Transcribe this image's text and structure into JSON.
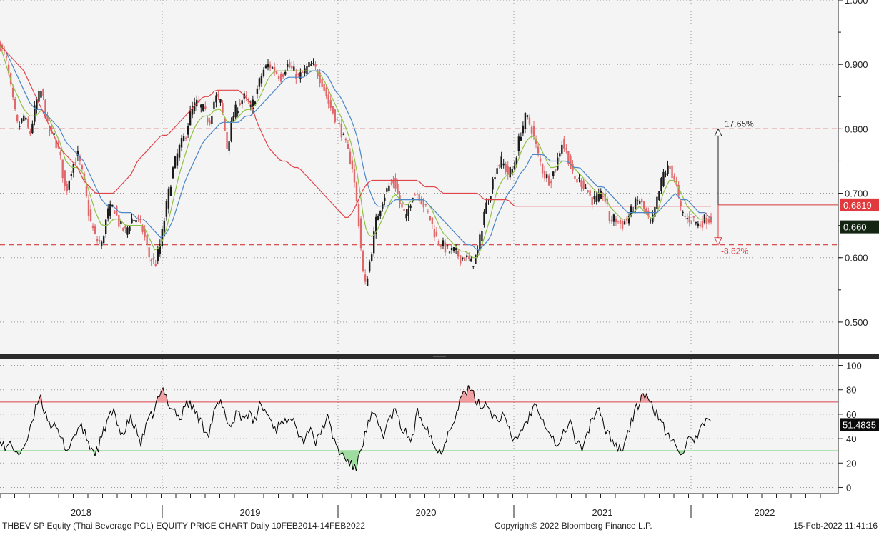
{
  "chart_data": [
    {
      "type": "candlestick",
      "title": "",
      "ylim": [
        0.45,
        1.0
      ],
      "y_ticks": [
        "1.000",
        "0.900",
        "0.800",
        "0.700",
        "0.600",
        "0.500"
      ],
      "series": [
        {
          "name": "",
          "values": [
            0.93,
            0.91,
            0.85,
            0.8,
            0.82,
            0.79,
            0.84,
            0.86,
            0.8,
            0.79,
            0.76,
            0.7,
            0.74,
            0.76,
            0.72,
            0.66,
            0.63,
            0.62,
            0.67,
            0.68,
            0.65,
            0.64,
            0.66,
            0.66,
            0.64,
            0.6,
            0.59,
            0.63,
            0.69,
            0.74,
            0.77,
            0.79,
            0.83,
            0.84,
            0.83,
            0.81,
            0.85,
            0.84,
            0.77,
            0.82,
            0.84,
            0.85,
            0.83,
            0.86,
            0.89,
            0.9,
            0.89,
            0.88,
            0.9,
            0.89,
            0.88,
            0.89,
            0.9,
            0.89,
            0.87,
            0.84,
            0.82,
            0.8,
            0.77,
            0.74,
            0.66,
            0.55,
            0.6,
            0.66,
            0.69,
            0.71,
            0.72,
            0.68,
            0.66,
            0.7,
            0.7,
            0.68,
            0.66,
            0.63,
            0.62,
            0.61,
            0.61,
            0.6,
            0.6,
            0.59,
            0.61,
            0.67,
            0.7,
            0.74,
            0.75,
            0.73,
            0.74,
            0.79,
            0.82,
            0.8,
            0.76,
            0.73,
            0.72,
            0.74,
            0.78,
            0.76,
            0.72,
            0.72,
            0.71,
            0.69,
            0.69,
            0.7,
            0.66,
            0.66,
            0.65,
            0.66,
            0.68,
            0.69,
            0.67,
            0.65,
            0.69,
            0.73,
            0.74,
            0.72,
            0.67,
            0.66,
            0.66,
            0.65,
            0.66,
            0.66
          ]
        },
        {
          "name": "",
          "values": [
            0.93,
            0.9,
            0.87,
            0.85,
            0.83,
            0.82,
            0.82,
            0.83,
            0.82,
            0.8,
            0.78,
            0.75,
            0.74,
            0.74,
            0.73,
            0.7,
            0.67,
            0.65,
            0.65,
            0.66,
            0.66,
            0.65,
            0.65,
            0.65,
            0.65,
            0.63,
            0.61,
            0.62,
            0.65,
            0.69,
            0.73,
            0.76,
            0.79,
            0.81,
            0.82,
            0.82,
            0.83,
            0.83,
            0.81,
            0.81,
            0.82,
            0.83,
            0.83,
            0.84,
            0.86,
            0.88,
            0.89,
            0.89,
            0.89,
            0.89,
            0.89,
            0.89,
            0.89,
            0.89,
            0.88,
            0.86,
            0.84,
            0.82,
            0.8,
            0.77,
            0.72,
            0.65,
            0.63,
            0.64,
            0.66,
            0.68,
            0.7,
            0.69,
            0.68,
            0.69,
            0.69,
            0.69,
            0.68,
            0.66,
            0.64,
            0.63,
            0.62,
            0.61,
            0.61,
            0.6,
            0.6,
            0.63,
            0.66,
            0.7,
            0.72,
            0.73,
            0.73,
            0.76,
            0.78,
            0.79,
            0.78,
            0.76,
            0.74,
            0.74,
            0.75,
            0.75,
            0.74,
            0.73,
            0.72,
            0.71,
            0.7,
            0.7,
            0.68,
            0.67,
            0.66,
            0.66,
            0.67,
            0.68,
            0.67,
            0.66,
            0.67,
            0.7,
            0.72,
            0.72,
            0.7,
            0.68,
            0.67,
            0.66,
            0.66,
            0.66
          ]
        },
        {
          "name": "",
          "values": [
            0.93,
            0.92,
            0.9,
            0.88,
            0.86,
            0.84,
            0.83,
            0.83,
            0.82,
            0.81,
            0.8,
            0.78,
            0.77,
            0.76,
            0.75,
            0.73,
            0.71,
            0.69,
            0.68,
            0.68,
            0.67,
            0.67,
            0.67,
            0.66,
            0.66,
            0.65,
            0.64,
            0.63,
            0.64,
            0.66,
            0.69,
            0.72,
            0.74,
            0.76,
            0.78,
            0.79,
            0.8,
            0.81,
            0.81,
            0.81,
            0.81,
            0.82,
            0.82,
            0.83,
            0.84,
            0.85,
            0.86,
            0.87,
            0.88,
            0.88,
            0.88,
            0.88,
            0.89,
            0.89,
            0.89,
            0.88,
            0.86,
            0.85,
            0.83,
            0.81,
            0.78,
            0.73,
            0.7,
            0.68,
            0.68,
            0.68,
            0.69,
            0.69,
            0.69,
            0.69,
            0.69,
            0.69,
            0.68,
            0.67,
            0.66,
            0.65,
            0.64,
            0.63,
            0.62,
            0.62,
            0.61,
            0.62,
            0.63,
            0.66,
            0.68,
            0.7,
            0.71,
            0.73,
            0.74,
            0.76,
            0.76,
            0.76,
            0.75,
            0.75,
            0.75,
            0.75,
            0.74,
            0.74,
            0.73,
            0.72,
            0.71,
            0.71,
            0.7,
            0.69,
            0.68,
            0.67,
            0.67,
            0.67,
            0.67,
            0.67,
            0.67,
            0.68,
            0.69,
            0.7,
            0.69,
            0.69,
            0.68,
            0.67,
            0.67,
            0.66
          ]
        },
        {
          "name": "",
          "values": [
            0.93,
            0.92,
            0.91,
            0.9,
            0.89,
            0.87,
            0.85,
            0.83,
            0.81,
            0.79,
            0.77,
            0.76,
            0.75,
            0.74,
            0.72,
            0.71,
            0.7,
            0.7,
            0.7,
            0.7,
            0.71,
            0.72,
            0.73,
            0.75,
            0.76,
            0.77,
            0.78,
            0.79,
            0.79,
            0.8,
            0.81,
            0.82,
            0.83,
            0.84,
            0.85,
            0.85,
            0.86,
            0.86,
            0.86,
            0.86,
            0.86,
            0.85,
            0.84,
            0.81,
            0.79,
            0.77,
            0.76,
            0.75,
            0.75,
            0.74,
            0.74,
            0.73,
            0.72,
            0.71,
            0.7,
            0.69,
            0.68,
            0.67,
            0.66,
            0.67,
            0.69,
            0.71,
            0.72,
            0.72,
            0.72,
            0.72,
            0.72,
            0.72,
            0.72,
            0.72,
            0.72,
            0.71,
            0.71,
            0.71,
            0.7,
            0.7,
            0.7,
            0.7,
            0.7,
            0.7,
            0.7,
            0.69,
            0.69,
            0.69,
            0.69,
            0.69,
            0.68,
            0.68,
            0.68,
            0.68,
            0.68,
            0.68,
            0.68,
            0.68,
            0.68,
            0.68,
            0.68,
            0.68,
            0.68,
            0.68,
            0.68,
            0.68,
            0.68,
            0.68,
            0.68,
            0.68,
            0.68,
            0.68,
            0.68,
            0.68,
            0.68,
            0.68,
            0.68,
            0.68,
            0.68,
            0.68,
            0.68,
            0.68,
            0.68,
            0.68
          ]
        }
      ],
      "levels": [
        {
          "value": 0.8,
          "label": "+17.65%"
        },
        {
          "value": 0.62,
          "label": "-8.82%"
        }
      ],
      "last_labels": [
        {
          "value": 0.6819,
          "label": "0.6819"
        },
        {
          "value": 0.66,
          "label": "0.660"
        }
      ]
    },
    {
      "type": "line",
      "title": "",
      "ylim": [
        -5,
        105
      ],
      "y_ticks": [
        "100",
        "80",
        "60",
        "40",
        "20",
        "0"
      ],
      "thresholds": [
        70,
        30
      ],
      "series": [
        {
          "name": "",
          "values": [
            42,
            30,
            38,
            25,
            33,
            40,
            58,
            77,
            61,
            52,
            47,
            38,
            31,
            41,
            50,
            45,
            33,
            28,
            40,
            55,
            62,
            50,
            43,
            57,
            48,
            36,
            51,
            60,
            72,
            80,
            68,
            63,
            55,
            71,
            66,
            59,
            50,
            45,
            62,
            70,
            58,
            49,
            64,
            57,
            61,
            52,
            68,
            63,
            55,
            47,
            58,
            50,
            61,
            44,
            38,
            52,
            35,
            48,
            57,
            42,
            30,
            25,
            20,
            14,
            33,
            48,
            60,
            52,
            43,
            56,
            63,
            50,
            44,
            38,
            62,
            55,
            47,
            33,
            28,
            40,
            52,
            63,
            77,
            80,
            75,
            66,
            70,
            62,
            55,
            60,
            48,
            38,
            44,
            52,
            60,
            71,
            58,
            49,
            40,
            33,
            46,
            55,
            38,
            31,
            44,
            57,
            63,
            51,
            43,
            36,
            30,
            41,
            55,
            67,
            78,
            70,
            62,
            57,
            44,
            38,
            33,
            29,
            40,
            35,
            47,
            52,
            55
          ]
        }
      ],
      "last_labels": [
        {
          "value": 51.4835,
          "label": "51.4835"
        }
      ]
    }
  ],
  "x_axis": {
    "tick_labels": [
      "2018",
      "2019",
      "2020",
      "2021",
      "2022"
    ]
  },
  "footer": {
    "left": "THBEV SP Equity (Thai Beverage PCL) EQUITY PRICE CHART  Daily 10FEB2014-14FEB2022",
    "center": "Copyright© 2022 Bloomberg Finance L.P.",
    "right": "15-Feb-2022  11:41:16"
  },
  "colors": {
    "up_candle": "#1a1a1a",
    "down_candle": "#e0686b",
    "ma_short": "#8fc245",
    "ma_mid": "#4a86c8",
    "ma_long": "#e0454a",
    "rsi_line": "#000000",
    "rsi_upper": "#d9404a",
    "rsi_lower": "#3fc23f",
    "level_line": "#d23a3a",
    "label_red": "#e03a3e",
    "label_dark": "#142512"
  }
}
